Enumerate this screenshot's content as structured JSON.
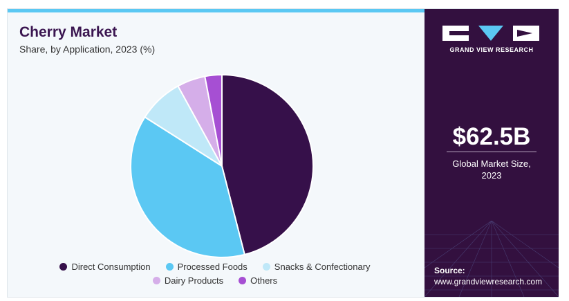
{
  "header": {
    "title": "Cherry Market",
    "subtitle": "Share, by Application, 2023 (%)"
  },
  "colors": {
    "accent_bar": "#5bc8f3",
    "panel_bg": "#33103f",
    "title": "#3a1550"
  },
  "chart_data": {
    "type": "pie",
    "title": "Cherry Market",
    "subtitle": "Share, by Application, 2023 (%)",
    "legend_position": "bottom",
    "categories": [
      "Direct Consumption",
      "Processed Foods",
      "Snacks & Confectionary",
      "Dairy Products",
      "Others"
    ],
    "values": [
      46,
      38,
      8,
      5,
      3
    ],
    "colors": [
      "#36104a",
      "#5bc8f3",
      "#bfe8f8",
      "#d5aee9",
      "#a64fd3"
    ]
  },
  "side_panel": {
    "brand": "GRAND VIEW RESEARCH",
    "market_value": "$62.5B",
    "market_label_line1": "Global Market Size,",
    "market_label_line2": "2023",
    "source_label": "Source:",
    "source_url": "www.grandviewresearch.com"
  }
}
